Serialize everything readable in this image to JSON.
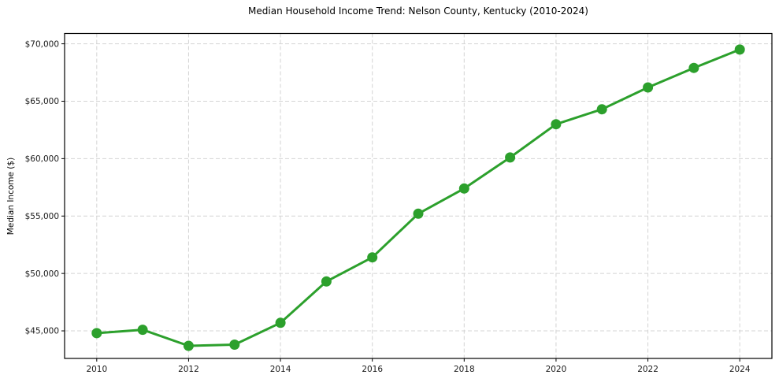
{
  "page": {
    "title": "Median Household Income Trend: Nelson County, Kentucky (2010-2024)"
  },
  "chart_data": {
    "type": "line",
    "title": "Median Household Income Trend: Nelson County, Kentucky (2010-2024)",
    "xlabel": "",
    "ylabel": "Median Income ($)",
    "x": [
      2010,
      2011,
      2012,
      2013,
      2014,
      2015,
      2016,
      2017,
      2018,
      2019,
      2020,
      2021,
      2022,
      2023,
      2024
    ],
    "series": [
      {
        "name": "Median household income",
        "color": "#2ca02c",
        "values": [
          44800,
          45100,
          43700,
          43800,
          45700,
          49300,
          51400,
          55200,
          57400,
          60100,
          63000,
          64300,
          66200,
          67900,
          69500
        ]
      }
    ],
    "xlim": [
      2009.3,
      2024.7
    ],
    "ylim": [
      42600,
      70900
    ],
    "xticks": {
      "values": [
        2010,
        2012,
        2014,
        2016,
        2018,
        2020,
        2022,
        2024
      ],
      "labels": [
        "2010",
        "2012",
        "2014",
        "2016",
        "2018",
        "2020",
        "2022",
        "2024"
      ]
    },
    "yticks": {
      "values": [
        45000,
        50000,
        55000,
        60000,
        65000,
        70000
      ],
      "labels": [
        "$45,000",
        "$50,000",
        "$55,000",
        "$60,000",
        "$65,000",
        "$70,000"
      ]
    },
    "grid": {
      "show": true,
      "style": "dashed",
      "color": "#d4d4d4"
    },
    "legend": "none",
    "marker": "circle",
    "line_width": 3,
    "marker_radius": 6.5,
    "axis_color": "#000000",
    "background": "#ffffff"
  }
}
